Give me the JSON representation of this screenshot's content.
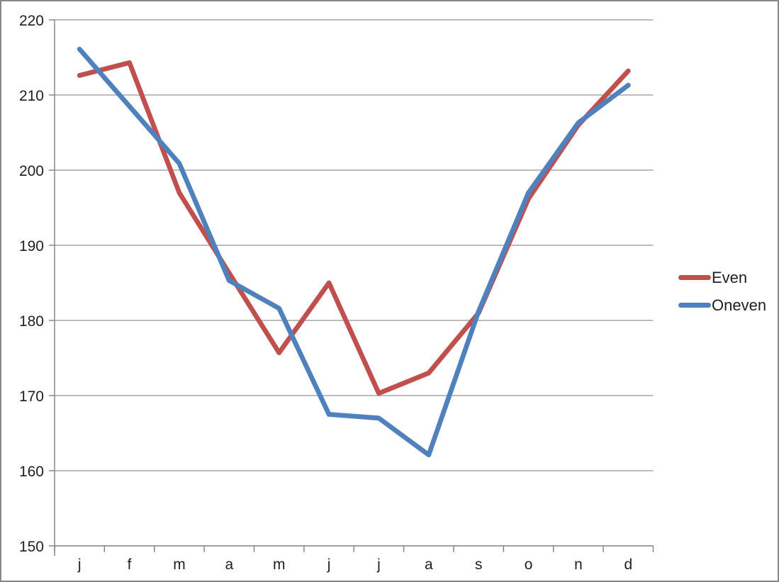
{
  "chart_data": {
    "type": "line",
    "title": "",
    "xlabel": "",
    "ylabel": "",
    "categories": [
      "j",
      "f",
      "m",
      "a",
      "m",
      "j",
      "j",
      "a",
      "s",
      "o",
      "n",
      "d"
    ],
    "series": [
      {
        "name": "Even",
        "color": "#C0504D",
        "values": [
          212.6,
          214.3,
          197.0,
          186.3,
          175.7,
          185.0,
          170.3,
          173.0,
          181.0,
          196.2,
          206.0,
          213.2
        ]
      },
      {
        "name": "Oneven",
        "color": "#4F81BD",
        "values": [
          216.1,
          208.5,
          200.9,
          185.3,
          181.6,
          167.5,
          167.0,
          162.1,
          181.2,
          197.0,
          206.3,
          211.3
        ]
      }
    ],
    "ylim": [
      150,
      220
    ],
    "ytick_interval": 10,
    "ytick_labels": [
      "150",
      "160",
      "170",
      "180",
      "190",
      "200",
      "210",
      "220"
    ],
    "grid": true,
    "legend_position": "right-middle"
  },
  "colors": {
    "gridline": "#A6A6A6",
    "axis": "#808080",
    "tick_text": "#1f1f1f",
    "background": "#FFFFFF",
    "frame_border": "#878787"
  }
}
